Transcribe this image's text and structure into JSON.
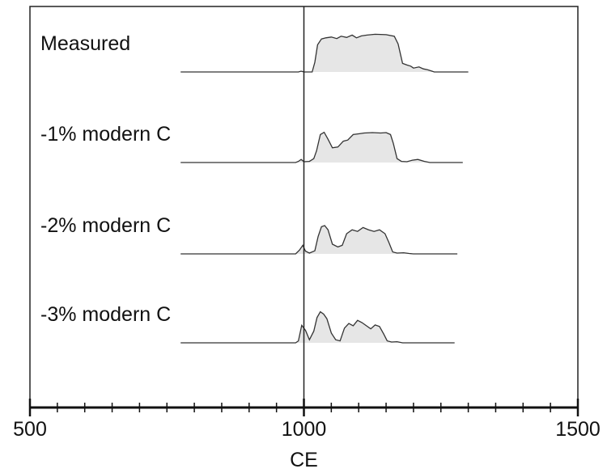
{
  "chart_data": {
    "type": "area",
    "title": "",
    "xlabel": "CE",
    "ylabel": "",
    "xlim": [
      500,
      1500
    ],
    "x_ticks": [
      500,
      1000,
      1500
    ],
    "x_minor_step": 50,
    "reference_line_x": 1000,
    "grid": false,
    "legend": "none",
    "fill_color": "#e6e6e6",
    "line_color": "#333333",
    "series": [
      {
        "name": "Measured",
        "x_range": [
          775,
          1300
        ],
        "points": [
          [
            775,
            0
          ],
          [
            990,
            0
          ],
          [
            995,
            0.02
          ],
          [
            1000,
            0
          ],
          [
            1015,
            0
          ],
          [
            1020,
            0.25
          ],
          [
            1025,
            0.7
          ],
          [
            1032,
            0.85
          ],
          [
            1040,
            0.88
          ],
          [
            1050,
            0.9
          ],
          [
            1060,
            0.86
          ],
          [
            1068,
            0.92
          ],
          [
            1078,
            0.89
          ],
          [
            1088,
            0.95
          ],
          [
            1096,
            0.88
          ],
          [
            1105,
            0.93
          ],
          [
            1115,
            0.95
          ],
          [
            1130,
            0.97
          ],
          [
            1150,
            0.96
          ],
          [
            1165,
            0.92
          ],
          [
            1172,
            0.72
          ],
          [
            1180,
            0.22
          ],
          [
            1188,
            0.18
          ],
          [
            1195,
            0.15
          ],
          [
            1200,
            0.1
          ],
          [
            1210,
            0.13
          ],
          [
            1218,
            0.08
          ],
          [
            1225,
            0.06
          ],
          [
            1232,
            0.03
          ],
          [
            1238,
            0
          ],
          [
            1300,
            0
          ]
        ]
      },
      {
        "name": "-1% modern C",
        "x_range": [
          775,
          1290
        ],
        "points": [
          [
            775,
            0
          ],
          [
            985,
            0
          ],
          [
            990,
            0.03
          ],
          [
            995,
            0.08
          ],
          [
            1000,
            0.02
          ],
          [
            1010,
            0.03
          ],
          [
            1018,
            0.1
          ],
          [
            1023,
            0.3
          ],
          [
            1030,
            0.72
          ],
          [
            1037,
            0.78
          ],
          [
            1044,
            0.6
          ],
          [
            1052,
            0.38
          ],
          [
            1062,
            0.4
          ],
          [
            1072,
            0.55
          ],
          [
            1080,
            0.58
          ],
          [
            1090,
            0.72
          ],
          [
            1100,
            0.74
          ],
          [
            1110,
            0.76
          ],
          [
            1125,
            0.77
          ],
          [
            1140,
            0.76
          ],
          [
            1150,
            0.77
          ],
          [
            1158,
            0.72
          ],
          [
            1163,
            0.5
          ],
          [
            1170,
            0.1
          ],
          [
            1178,
            0.03
          ],
          [
            1188,
            0.02
          ],
          [
            1198,
            0.06
          ],
          [
            1208,
            0.08
          ],
          [
            1220,
            0.03
          ],
          [
            1230,
            0
          ],
          [
            1290,
            0
          ]
        ]
      },
      {
        "name": "-2% modern C",
        "x_range": [
          775,
          1280
        ],
        "points": [
          [
            775,
            0
          ],
          [
            985,
            0
          ],
          [
            992,
            0.1
          ],
          [
            998,
            0.22
          ],
          [
            1003,
            0.07
          ],
          [
            1010,
            0.02
          ],
          [
            1020,
            0.08
          ],
          [
            1026,
            0.45
          ],
          [
            1032,
            0.7
          ],
          [
            1038,
            0.73
          ],
          [
            1044,
            0.62
          ],
          [
            1052,
            0.25
          ],
          [
            1062,
            0.18
          ],
          [
            1070,
            0.22
          ],
          [
            1078,
            0.52
          ],
          [
            1088,
            0.62
          ],
          [
            1098,
            0.58
          ],
          [
            1108,
            0.68
          ],
          [
            1118,
            0.62
          ],
          [
            1128,
            0.58
          ],
          [
            1138,
            0.62
          ],
          [
            1148,
            0.52
          ],
          [
            1155,
            0.3
          ],
          [
            1162,
            0.05
          ],
          [
            1170,
            0.02
          ],
          [
            1182,
            0.03
          ],
          [
            1192,
            0.01
          ],
          [
            1200,
            0
          ],
          [
            1280,
            0
          ]
        ]
      },
      {
        "name": "-3% modern C",
        "x_range": [
          775,
          1275
        ],
        "points": [
          [
            775,
            0
          ],
          [
            985,
            0
          ],
          [
            990,
            0.05
          ],
          [
            996,
            0.45
          ],
          [
            1003,
            0.32
          ],
          [
            1010,
            0.08
          ],
          [
            1018,
            0.3
          ],
          [
            1024,
            0.65
          ],
          [
            1030,
            0.8
          ],
          [
            1036,
            0.74
          ],
          [
            1042,
            0.62
          ],
          [
            1050,
            0.25
          ],
          [
            1058,
            0.08
          ],
          [
            1066,
            0.05
          ],
          [
            1074,
            0.38
          ],
          [
            1082,
            0.5
          ],
          [
            1090,
            0.44
          ],
          [
            1098,
            0.58
          ],
          [
            1106,
            0.52
          ],
          [
            1114,
            0.44
          ],
          [
            1122,
            0.36
          ],
          [
            1130,
            0.46
          ],
          [
            1138,
            0.42
          ],
          [
            1146,
            0.22
          ],
          [
            1152,
            0.05
          ],
          [
            1160,
            0.02
          ],
          [
            1170,
            0.03
          ],
          [
            1180,
            0
          ],
          [
            1275,
            0
          ]
        ]
      }
    ]
  }
}
